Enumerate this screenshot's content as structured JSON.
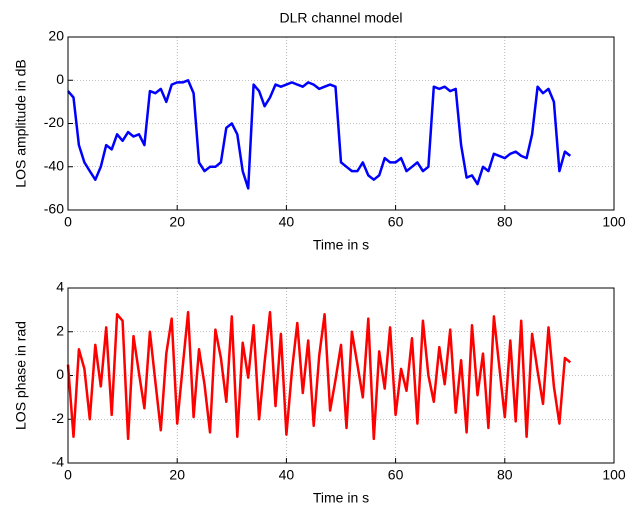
{
  "chart_data": [
    {
      "type": "line",
      "title": "DLR channel model",
      "xlabel": "Time in s",
      "ylabel": "LOS amplitude in dB",
      "x": [
        0,
        1,
        2,
        3,
        4,
        5,
        6,
        7,
        8,
        9,
        10,
        11,
        12,
        13,
        14,
        15,
        16,
        17,
        18,
        19,
        20,
        21,
        22,
        23,
        24,
        25,
        26,
        27,
        28,
        29,
        30,
        31,
        32,
        33,
        34,
        35,
        36,
        37,
        38,
        39,
        40,
        41,
        42,
        43,
        44,
        45,
        46,
        47,
        48,
        49,
        50,
        51,
        52,
        53,
        54,
        55,
        56,
        57,
        58,
        59,
        60,
        61,
        62,
        63,
        64,
        65,
        66,
        67,
        68,
        69,
        70,
        71,
        72,
        73,
        74,
        75,
        76,
        77,
        78,
        79,
        80,
        81,
        82,
        83,
        84,
        85,
        86,
        87,
        88,
        89,
        90,
        91,
        92
      ],
      "series": [
        {
          "color": "#0000ff",
          "values": [
            -5,
            -8,
            -30,
            -38,
            -42,
            -46,
            -40,
            -30,
            -32,
            -25,
            -28,
            -24,
            -26,
            -25,
            -30,
            -5,
            -6,
            -4,
            -10,
            -2,
            -1,
            -1,
            0,
            -6,
            -38,
            -42,
            -40,
            -40,
            -38,
            -22,
            -20,
            -25,
            -42,
            -50,
            -2,
            -5,
            -12,
            -8,
            -2,
            -3,
            -2,
            -1,
            -2,
            -3,
            -1,
            -2,
            -4,
            -3,
            -2,
            -3,
            -38,
            -40,
            -42,
            -42,
            -38,
            -44,
            -46,
            -44,
            -36,
            -38,
            -38,
            -36,
            -42,
            -40,
            -38,
            -42,
            -40,
            -3,
            -4,
            -3,
            -5,
            -4,
            -30,
            -45,
            -44,
            -48,
            -40,
            -42,
            -34,
            -35,
            -36,
            -34,
            -33,
            -35,
            -36,
            -25,
            -3,
            -6,
            -4,
            -10,
            -42,
            -33,
            -35
          ]
        }
      ],
      "xlim": [
        0,
        100
      ],
      "ylim": [
        -60,
        20
      ],
      "xticks": [
        0,
        20,
        40,
        60,
        80,
        100
      ],
      "yticks": [
        -60,
        -40,
        -20,
        0,
        20
      ],
      "grid": true
    },
    {
      "type": "line",
      "xlabel": "Time in s",
      "ylabel": "LOS phase in rad",
      "x": [
        0,
        1,
        2,
        3,
        4,
        5,
        6,
        7,
        8,
        9,
        10,
        11,
        12,
        13,
        14,
        15,
        16,
        17,
        18,
        19,
        20,
        21,
        22,
        23,
        24,
        25,
        26,
        27,
        28,
        29,
        30,
        31,
        32,
        33,
        34,
        35,
        36,
        37,
        38,
        39,
        40,
        41,
        42,
        43,
        44,
        45,
        46,
        47,
        48,
        49,
        50,
        51,
        52,
        53,
        54,
        55,
        56,
        57,
        58,
        59,
        60,
        61,
        62,
        63,
        64,
        65,
        66,
        67,
        68,
        69,
        70,
        71,
        72,
        73,
        74,
        75,
        76,
        77,
        78,
        79,
        80,
        81,
        82,
        83,
        84,
        85,
        86,
        87,
        88,
        89,
        90,
        91,
        92
      ],
      "series": [
        {
          "color": "#ff0000",
          "values": [
            0.5,
            -2.8,
            1.2,
            0.3,
            -2.0,
            1.4,
            -0.5,
            2.2,
            -1.8,
            2.8,
            2.5,
            -2.9,
            1.8,
            0.1,
            -1.5,
            2.0,
            -0.3,
            -2.5,
            1.0,
            2.6,
            -2.2,
            0.4,
            2.9,
            -1.9,
            1.2,
            -0.4,
            -2.6,
            2.1,
            0.8,
            -1.2,
            2.7,
            -2.8,
            1.5,
            -0.1,
            2.3,
            -2.0,
            0.6,
            2.9,
            -1.4,
            1.9,
            -2.7,
            0.2,
            2.4,
            -0.8,
            1.6,
            -2.3,
            0.9,
            2.8,
            -1.6,
            -0.2,
            1.4,
            -2.4,
            2.0,
            0.5,
            -1.0,
            2.6,
            -2.9,
            1.1,
            -0.6,
            2.2,
            -1.8,
            0.3,
            -0.7,
            1.7,
            -2.2,
            2.5,
            0.0,
            -1.2,
            1.3,
            -0.4,
            2.1,
            -1.7,
            0.7,
            -2.6,
            2.3,
            -0.9,
            1.0,
            -2.4,
            2.7,
            0.4,
            -1.9,
            1.6,
            -2.1,
            2.5,
            -2.8,
            1.9,
            0.2,
            -1.3,
            2.2,
            -0.5,
            -2.2,
            0.8,
            0.6
          ]
        }
      ],
      "xlim": [
        0,
        100
      ],
      "ylim": [
        -4,
        4
      ],
      "xticks": [
        0,
        20,
        40,
        60,
        80,
        100
      ],
      "yticks": [
        -4,
        -2,
        0,
        2,
        4
      ],
      "grid": true
    }
  ]
}
